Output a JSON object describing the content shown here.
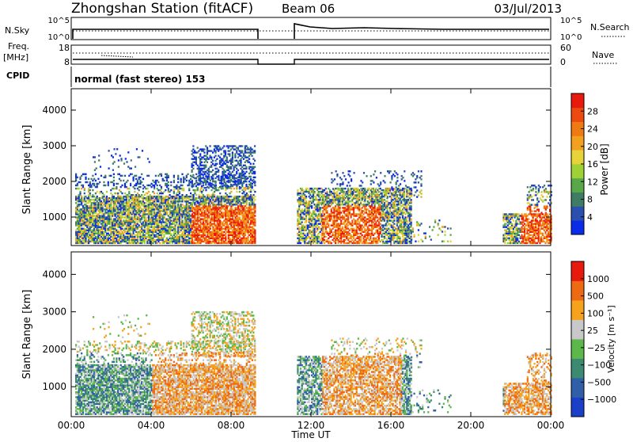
{
  "header": {
    "title": "Zhongshan Station (fitACF)",
    "beam": "Beam 06",
    "date": "03/Jul/2013"
  },
  "strip_labels": {
    "nsky": "N.Sky",
    "nsky_ticks": [
      "10^5",
      "10^0"
    ],
    "nsearch": "N.Search",
    "nsearch_ticks": [
      "10^5",
      "10^0"
    ],
    "freq": "Freq.",
    "freq_unit": "[MHz]",
    "freq_ticks": [
      "18",
      "8"
    ],
    "nave": "Nave",
    "nave_ticks": [
      "60",
      "0"
    ],
    "cpid": "CPID",
    "cpid_text": "normal (fast stereo) 153"
  },
  "chart_data": [
    {
      "type": "heatmap",
      "name": "power",
      "ylabel": "Slant Range [km]",
      "yticks": [
        1000,
        2000,
        3000,
        4000
      ],
      "ylim": [
        200,
        4600
      ],
      "xticks": [
        "00:00",
        "04:00",
        "08:00",
        "12:00",
        "16:00",
        "20:00",
        "00:00"
      ],
      "xlim_hours": [
        0,
        24
      ],
      "data_gap_hours": [
        9.2,
        11.3
      ],
      "colorbar": {
        "label": "Power [dB]",
        "ticks": [
          "28",
          "24",
          "20",
          "16",
          "12",
          "8",
          "4"
        ],
        "colors": [
          "#0a2be8",
          "#2a4fae",
          "#3f7c64",
          "#58a84a",
          "#9fd035",
          "#e8d23a",
          "#f2a020",
          "#ef7a12",
          "#ec4a10",
          "#e81a0e"
        ]
      }
    },
    {
      "type": "heatmap",
      "name": "velocity",
      "ylabel": "Slant Range [km]",
      "yticks": [
        1000,
        2000,
        3000,
        4000
      ],
      "ylim": [
        200,
        4600
      ],
      "xticks": [
        "00:00",
        "04:00",
        "08:00",
        "12:00",
        "16:00",
        "20:00",
        "00:00"
      ],
      "xlabel": "Time UT",
      "xlim_hours": [
        0,
        24
      ],
      "data_gap_hours": [
        9.2,
        11.3
      ],
      "colorbar": {
        "label": "Velocity [m s⁻¹]",
        "ticks": [
          "1000",
          "500",
          "100",
          "25",
          "−25",
          "−100",
          "−500",
          "−1000"
        ],
        "colors": [
          "#1a3fc8",
          "#2f5fa8",
          "#3c8a72",
          "#5cb84a",
          "#c8c8c8",
          "#f6a21c",
          "#ee6a12",
          "#e81a0e"
        ]
      }
    }
  ]
}
